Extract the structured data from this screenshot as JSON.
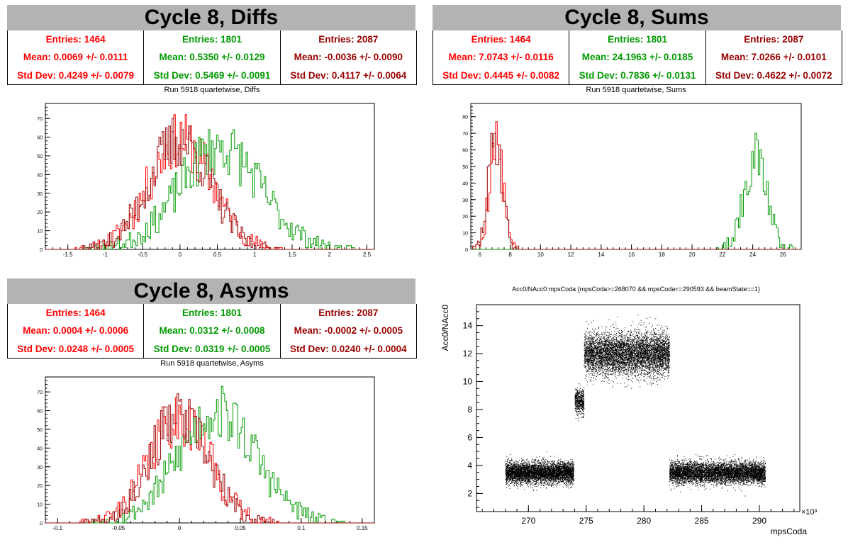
{
  "colors": {
    "red": "#ff0000",
    "green": "#009900",
    "darkred": "#990000",
    "title_bg": "#b3b3b3"
  },
  "panels": {
    "diffs": {
      "header": "Cycle 8, Diffs",
      "stats": [
        {
          "entries": "Entries: 1464",
          "mean": "Mean: 0.0069 +/- 0.0111",
          "std": "Std Dev: 0.4249 +/- 0.0079"
        },
        {
          "entries": "Entries: 1801",
          "mean": "Mean: 0.5350 +/- 0.0129",
          "std": "Std Dev: 0.5469 +/- 0.0091"
        },
        {
          "entries": "Entries: 2087",
          "mean": "Mean: -0.0036 +/- 0.0090",
          "std": "Std Dev: 0.4117 +/- 0.0064"
        }
      ],
      "plot_title": "Run 5918 quartetwise, Diffs"
    },
    "sums": {
      "header": "Cycle 8, Sums",
      "stats": [
        {
          "entries": "Entries: 1464",
          "mean": "Mean: 7.0743 +/- 0.0116",
          "std": "Std Dev: 0.4445 +/- 0.0082"
        },
        {
          "entries": "Entries: 1801",
          "mean": "Mean: 24.1963 +/- 0.0185",
          "std": "Std Dev: 0.7836 +/- 0.0131"
        },
        {
          "entries": "Entries: 2087",
          "mean": "Mean: 7.0266 +/- 0.0101",
          "std": "Std Dev: 0.4622 +/- 0.0072"
        }
      ],
      "plot_title": "Run 5918 quartetwise, Sums"
    },
    "asyms": {
      "header": "Cycle 8, Asyms",
      "stats": [
        {
          "entries": "Entries: 1464",
          "mean": "Mean: 0.0004 +/- 0.0006",
          "std": "Std Dev: 0.0248 +/- 0.0005"
        },
        {
          "entries": "Entries: 1801",
          "mean": "Mean: 0.0312 +/- 0.0008",
          "std": "Std Dev: 0.0319 +/- 0.0005"
        },
        {
          "entries": "Entries: 2087",
          "mean": "Mean: -0.0002 +/- 0.0005",
          "std": "Std Dev: 0.0240 +/- 0.0004"
        }
      ],
      "plot_title": "Run 5918 quartetwise, Asyms"
    },
    "scatter": {
      "plot_title": "Acc0/NAcc0:mpsCoda {mpsCoda>=268070 && mpsCoda<=290593 && beamState==1}"
    }
  },
  "chart_data": [
    {
      "type": "histogram",
      "id": "diffs",
      "title": "Run 5918 quartetwise, Diffs",
      "xlim": [
        -1.8,
        2.6
      ],
      "ylim": [
        0,
        78
      ],
      "xticks": [
        "-1.5",
        "-1",
        "-0.5",
        "0",
        "0.5",
        "1",
        "1.5",
        "2",
        "2.5"
      ],
      "xtick_values": [
        -1.5,
        -1,
        -0.5,
        0,
        0.5,
        1,
        1.5,
        2,
        2.5
      ],
      "yticks": [
        "0",
        "10",
        "20",
        "30",
        "40",
        "50",
        "60",
        "70"
      ],
      "ytick_values": [
        0,
        10,
        20,
        30,
        40,
        50,
        60,
        70
      ],
      "series": [
        {
          "color": "#ff0000",
          "entries": 1464,
          "mean": 0.0069,
          "std": 0.4249,
          "peak": 75,
          "seed": 11
        },
        {
          "color": "#009900",
          "entries": 1801,
          "mean": 0.535,
          "std": 0.5469,
          "peak": 70,
          "seed": 23
        },
        {
          "color": "#990000",
          "entries": 2087,
          "mean": -0.0036,
          "std": 0.4117,
          "peak": 75,
          "seed": 37
        }
      ]
    },
    {
      "type": "histogram",
      "id": "sums",
      "title": "Run 5918 quartetwise, Sums",
      "xlim": [
        5.4,
        27.2
      ],
      "ylim": [
        0,
        88
      ],
      "xticks": [
        "6",
        "8",
        "10",
        "12",
        "14",
        "16",
        "18",
        "20",
        "22",
        "24",
        "26"
      ],
      "xtick_values": [
        6,
        8,
        10,
        12,
        14,
        16,
        18,
        20,
        22,
        24,
        26
      ],
      "yticks": [
        "0",
        "10",
        "20",
        "30",
        "40",
        "50",
        "60",
        "70",
        "80"
      ],
      "ytick_values": [
        0,
        10,
        20,
        30,
        40,
        50,
        60,
        70,
        80
      ],
      "series": [
        {
          "color": "#ff0000",
          "entries": 1464,
          "mean": 7.0743,
          "std": 0.4445,
          "peak": 85,
          "seed": 5
        },
        {
          "color": "#009900",
          "entries": 1801,
          "mean": 24.1963,
          "std": 0.7836,
          "peak": 71,
          "seed": 17
        },
        {
          "color": "#990000",
          "entries": 2087,
          "mean": 7.0266,
          "std": 0.4622,
          "peak": 85,
          "seed": 29
        }
      ]
    },
    {
      "type": "histogram",
      "id": "asyms",
      "title": "Run 5918 quartetwise, Asyms",
      "xlim": [
        -0.11,
        0.16
      ],
      "ylim": [
        0,
        78
      ],
      "xticks": [
        "-0.1",
        "-0.05",
        "0",
        "0.05",
        "0.1",
        "0.15"
      ],
      "xtick_values": [
        -0.1,
        -0.05,
        0,
        0.05,
        0.1,
        0.15
      ],
      "yticks": [
        "0",
        "10",
        "20",
        "30",
        "40",
        "50",
        "60",
        "70"
      ],
      "ytick_values": [
        0,
        10,
        20,
        30,
        40,
        50,
        60,
        70
      ],
      "series": [
        {
          "color": "#ff0000",
          "entries": 1464,
          "mean": 0.0004,
          "std": 0.0248,
          "peak": 72,
          "seed": 41
        },
        {
          "color": "#009900",
          "entries": 1801,
          "mean": 0.0312,
          "std": 0.0319,
          "peak": 76,
          "seed": 53
        },
        {
          "color": "#990000",
          "entries": 2087,
          "mean": -0.0002,
          "std": 0.024,
          "peak": 72,
          "seed": 67
        }
      ]
    },
    {
      "type": "scatter",
      "id": "scatter",
      "title": "Acc0/NAcc0:mpsCoda {mpsCoda>=268070 && mpsCoda<=290593 && beamState==1}",
      "xlabel": "mpsCoda",
      "ylabel": "Acc0/NAcc0",
      "x_multiplier": "×10³",
      "xlim": [
        265.5,
        293.5
      ],
      "ylim": [
        0.7,
        15.5
      ],
      "xticks": [
        "270",
        "275",
        "280",
        "285",
        "290"
      ],
      "xtick_values": [
        270,
        275,
        280,
        285,
        290
      ],
      "yticks": [
        "2",
        "4",
        "6",
        "8",
        "10",
        "12",
        "14"
      ],
      "ytick_values": [
        2,
        4,
        6,
        8,
        10,
        12,
        14
      ],
      "clusters": [
        {
          "x": [
            268.0,
            273.9
          ],
          "y_center": 3.5,
          "y_spread": 0.38,
          "points": 5000
        },
        {
          "x": [
            274.0,
            274.8
          ],
          "y_center": 8.6,
          "y_spread": 0.45,
          "points": 500
        },
        {
          "x": [
            274.8,
            282.2
          ],
          "y_center": 12.0,
          "y_spread": 0.75,
          "points": 6000
        },
        {
          "x": [
            282.2,
            290.5
          ],
          "y_center": 3.5,
          "y_spread": 0.38,
          "points": 6000
        }
      ]
    }
  ]
}
